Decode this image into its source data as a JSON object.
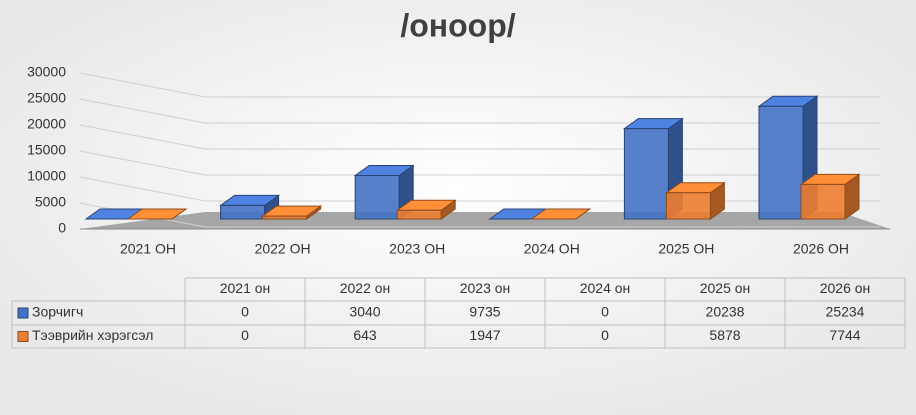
{
  "chart_data": {
    "type": "bar3d",
    "title": "/оноор/",
    "categories": [
      "2021 ОН",
      "2022 ОН",
      "2023 ОН",
      "2024 ОН",
      "2025 ОН",
      "2026 ОН"
    ],
    "table_columns": [
      "2021 он",
      "2022 он",
      "2023 он",
      "2024 он",
      "2025 он",
      "2026 он"
    ],
    "series": [
      {
        "name": "Зорчигч",
        "color": "#4472c4",
        "values": [
          0,
          3040,
          9735,
          0,
          20238,
          25234
        ]
      },
      {
        "name": "Тээврийн хэрэгсэл",
        "color": "#ed7d31",
        "values": [
          0,
          643,
          1947,
          0,
          5878,
          7744
        ]
      }
    ],
    "ylim": [
      0,
      30000
    ],
    "yticks": [
      0,
      5000,
      10000,
      15000,
      20000,
      25000,
      30000
    ],
    "grid": true
  }
}
